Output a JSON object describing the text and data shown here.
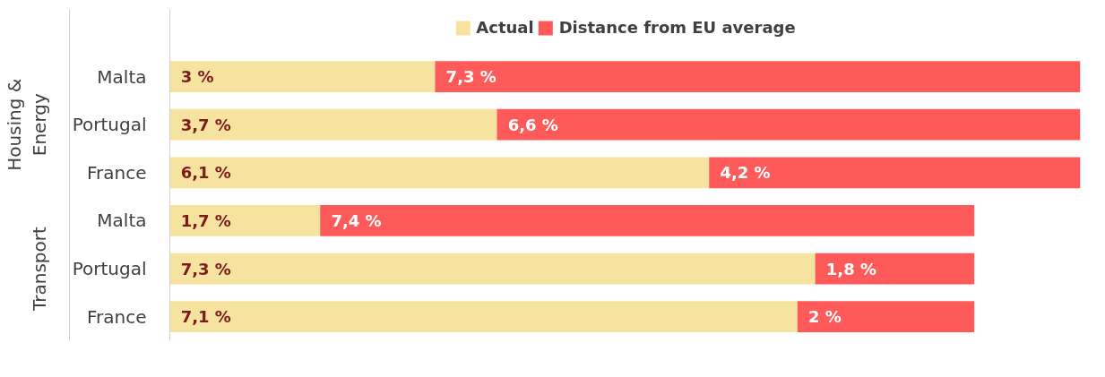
{
  "chart_data": {
    "type": "bar",
    "orientation": "horizontal",
    "stacked": true,
    "categories": [
      "Malta",
      "Portugal",
      "France",
      "Malta",
      "Portugal",
      "France"
    ],
    "annotations": [
      "Housing & Energy",
      "Transport"
    ],
    "series": [
      {
        "name": "Actual",
        "color": "#f7e3a0",
        "values": [
          3,
          3.7,
          6.1,
          1.7,
          7.3,
          7.1
        ],
        "value_labels": [
          "3 %",
          "3,7 %",
          "6,1 %",
          "1,7 %",
          "7,3 %",
          "7,1 %"
        ]
      },
      {
        "name": "Distance from EU average",
        "color": "#ff5a5a",
        "values": [
          7.3,
          6.6,
          4.2,
          7.4,
          1.8,
          2
        ],
        "value_labels": [
          "7,3 %",
          "6,6 %",
          "4,2 %",
          "7,4 %",
          "1,8 %",
          "2 %"
        ]
      }
    ],
    "xlim": [
      0,
      10.3
    ],
    "tick_labels": "y",
    "legend": "top",
    "grid": false
  }
}
